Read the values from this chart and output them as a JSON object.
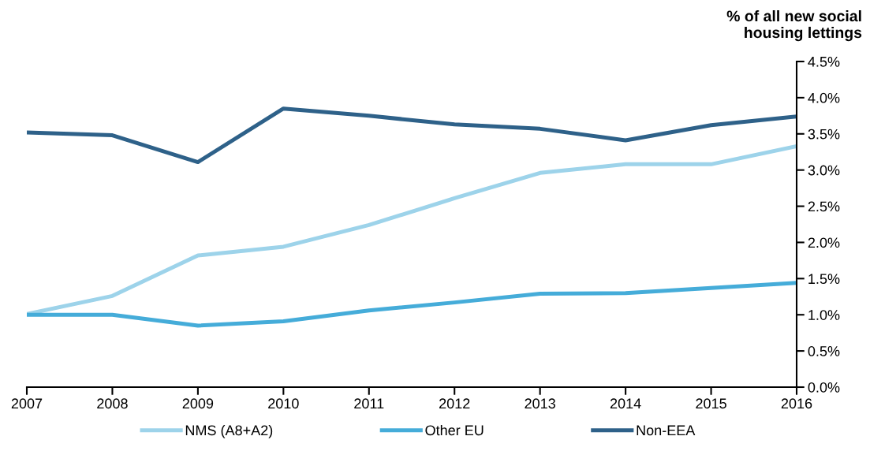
{
  "chart_data": {
    "type": "line",
    "ylabel": "% of all new social\nhousing lettings",
    "categories": [
      "2007",
      "2008",
      "2009",
      "2010",
      "2011",
      "2012",
      "2013",
      "2014",
      "2015",
      "2016"
    ],
    "series": [
      {
        "name": "NMS (A8+A2)",
        "color": "#9dd3ea",
        "values": [
          1.01,
          1.26,
          1.82,
          1.94,
          2.24,
          2.61,
          2.96,
          3.08,
          3.08,
          3.33
        ]
      },
      {
        "name": "Other EU",
        "color": "#45acd9",
        "values": [
          1.0,
          1.0,
          0.85,
          0.91,
          1.06,
          1.17,
          1.29,
          1.3,
          1.37,
          1.44
        ]
      },
      {
        "name": "Non-EEA",
        "color": "#2e6189",
        "values": [
          3.52,
          3.48,
          3.11,
          3.85,
          3.75,
          3.63,
          3.57,
          3.41,
          3.62,
          3.74
        ]
      }
    ],
    "ylim": [
      0,
      4.5
    ],
    "yticks": [
      {
        "value": 0,
        "label": "0.0%"
      },
      {
        "value": 0.5,
        "label": "0.5%"
      },
      {
        "value": 1,
        "label": "1.0%"
      },
      {
        "value": 1.5,
        "label": "1.5%"
      },
      {
        "value": 2,
        "label": "2.0%"
      },
      {
        "value": 2.5,
        "label": "2.5%"
      },
      {
        "value": 3,
        "label": "3.0%"
      },
      {
        "value": 3.5,
        "label": "3.5%"
      },
      {
        "value": 4,
        "label": "4.0%"
      },
      {
        "value": 4.5,
        "label": "4.5%"
      }
    ],
    "grid": false,
    "legend": "bottom",
    "marker": "none",
    "line_style": "solid"
  }
}
